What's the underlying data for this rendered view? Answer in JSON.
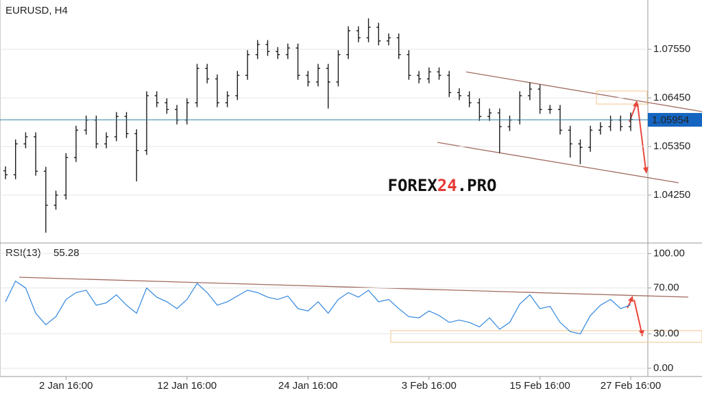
{
  "chart_data": [
    {
      "type": "ohlc",
      "title": "EURUSD, H4",
      "categories": [
        null,
        null,
        null,
        null,
        null,
        null,
        "2 Jan 16:00",
        null,
        null,
        null,
        null,
        null,
        null,
        null,
        null,
        null,
        null,
        null,
        "12 Jan 16:00",
        null,
        null,
        null,
        null,
        null,
        null,
        null,
        null,
        null,
        null,
        null,
        "24 Jan 16:00",
        null,
        null,
        null,
        null,
        null,
        null,
        null,
        null,
        null,
        null,
        null,
        "3 Feb 16:00",
        null,
        null,
        null,
        null,
        null,
        null,
        null,
        null,
        null,
        null,
        "15 Feb 16:00",
        null,
        null,
        null,
        null,
        null,
        null,
        null,
        null,
        "27 Feb 16:00"
      ],
      "open": [
        1.048,
        1.0471,
        1.0541,
        1.0557,
        1.0479,
        1.0402,
        1.0425,
        1.051,
        1.0572,
        1.0595,
        1.0541,
        1.0557,
        1.0603,
        1.0564,
        1.0526,
        1.065,
        1.0634,
        1.0619,
        1.0595,
        1.0634,
        1.0712,
        1.0688,
        1.0634,
        1.065,
        1.0696,
        1.0743,
        1.0766,
        1.075,
        1.0743,
        1.0758,
        1.0696,
        1.0681,
        1.0712,
        1.0681,
        1.0743,
        1.0797,
        1.0781,
        1.0805,
        1.0774,
        1.0781,
        1.0743,
        1.0696,
        1.0688,
        1.0704,
        1.0696,
        1.0657,
        1.065,
        1.0634,
        1.0603,
        1.0611,
        1.058,
        1.0595,
        1.065,
        1.0665,
        1.0619,
        1.0619,
        1.0572,
        1.0541,
        1.0533,
        1.0572,
        1.058,
        1.0595,
        1.058
      ],
      "high": [
        1.049,
        1.0551,
        1.0567,
        1.0567,
        1.0489,
        1.0435,
        1.052,
        1.0582,
        1.0605,
        1.0605,
        1.0567,
        1.0613,
        1.0613,
        1.0574,
        1.066,
        1.066,
        1.0644,
        1.0629,
        1.0644,
        1.0722,
        1.0722,
        1.0698,
        1.066,
        1.0706,
        1.0753,
        1.0776,
        1.0776,
        1.076,
        1.0768,
        1.0768,
        1.0706,
        1.0722,
        1.0722,
        1.0753,
        1.0807,
        1.0807,
        1.0825,
        1.0815,
        1.0791,
        1.0791,
        1.0753,
        1.0706,
        1.0714,
        1.0714,
        1.0706,
        1.0667,
        1.066,
        1.0644,
        1.0621,
        1.0621,
        1.0605,
        1.066,
        1.068,
        1.0675,
        1.0629,
        1.0629,
        1.0582,
        1.0551,
        1.0582,
        1.059,
        1.0605,
        1.0605,
        1.0612
      ],
      "low": [
        1.0461,
        1.0461,
        1.0531,
        1.0469,
        1.034,
        1.0392,
        1.0415,
        1.05,
        1.0562,
        1.0531,
        1.0531,
        1.0547,
        1.0554,
        1.0456,
        1.0516,
        1.0624,
        1.0609,
        1.0585,
        1.0585,
        1.0624,
        1.0678,
        1.0624,
        1.0624,
        1.064,
        1.0686,
        1.0733,
        1.074,
        1.0733,
        1.0733,
        1.0686,
        1.0671,
        1.0671,
        1.0621,
        1.0671,
        1.0733,
        1.0771,
        1.0771,
        1.0764,
        1.0764,
        1.0733,
        1.0686,
        1.0678,
        1.0678,
        1.0686,
        1.0647,
        1.064,
        1.0624,
        1.0593,
        1.0593,
        1.052,
        1.057,
        1.0585,
        1.064,
        1.0609,
        1.0609,
        1.0562,
        1.051,
        1.0495,
        1.0523,
        1.0562,
        1.057,
        1.057,
        1.057
      ],
      "close": [
        1.0471,
        1.0541,
        1.0557,
        1.0479,
        1.0402,
        1.0425,
        1.051,
        1.0572,
        1.0595,
        1.0541,
        1.0557,
        1.0603,
        1.0564,
        1.0526,
        1.065,
        1.0634,
        1.0619,
        1.0595,
        1.0634,
        1.0712,
        1.0688,
        1.0634,
        1.065,
        1.0696,
        1.0743,
        1.0766,
        1.075,
        1.0743,
        1.0758,
        1.0696,
        1.0681,
        1.0712,
        1.0681,
        1.0743,
        1.0797,
        1.0781,
        1.0805,
        1.0774,
        1.0781,
        1.0743,
        1.0696,
        1.0688,
        1.0704,
        1.0696,
        1.0657,
        1.065,
        1.0634,
        1.0603,
        1.0611,
        1.058,
        1.0595,
        1.065,
        1.0665,
        1.0619,
        1.0619,
        1.0572,
        1.0541,
        1.0533,
        1.0572,
        1.058,
        1.0595,
        1.058,
        1.0596
      ],
      "color": "#1a1a1a",
      "ylim": [
        1.03212,
        1.08666
      ],
      "yticks": [
        {
          "value": 1.0755,
          "label": "1.07550"
        },
        {
          "value": 1.0645,
          "label": "1.06450"
        },
        {
          "value": 1.0535,
          "label": "1.05350"
        },
        {
          "value": 1.0425,
          "label": "1.04250"
        }
      ],
      "grid": true,
      "current_price": {
        "value": 1.05954,
        "label": "1.05954"
      },
      "current_price_color": "#1565c0",
      "watermark": [
        "FOREX",
        "24",
        ".PRO"
      ]
    },
    {
      "type": "line",
      "title": "RSI(13)",
      "values": [
        58,
        76,
        70,
        48,
        38,
        45,
        60,
        66,
        68,
        55,
        57,
        64,
        55,
        48,
        70,
        62,
        58,
        52,
        60,
        74,
        66,
        55,
        58,
        63,
        68,
        66,
        62,
        60,
        63,
        52,
        50,
        58,
        48,
        60,
        66,
        62,
        68,
        58,
        60,
        52,
        45,
        44,
        50,
        46,
        40,
        42,
        40,
        36,
        44,
        34,
        40,
        56,
        64,
        52,
        54,
        40,
        32,
        30,
        46,
        55,
        60,
        52,
        55.28
      ],
      "color": "#2f86de",
      "ylim": [
        -6,
        108
      ],
      "yticks": [
        {
          "value": 100,
          "label": "100.00"
        },
        {
          "value": 70,
          "label": "70.00"
        },
        {
          "value": 30,
          "label": "30.00"
        },
        {
          "value": 0,
          "label": "0.00"
        }
      ],
      "grid": true
    }
  ]
}
